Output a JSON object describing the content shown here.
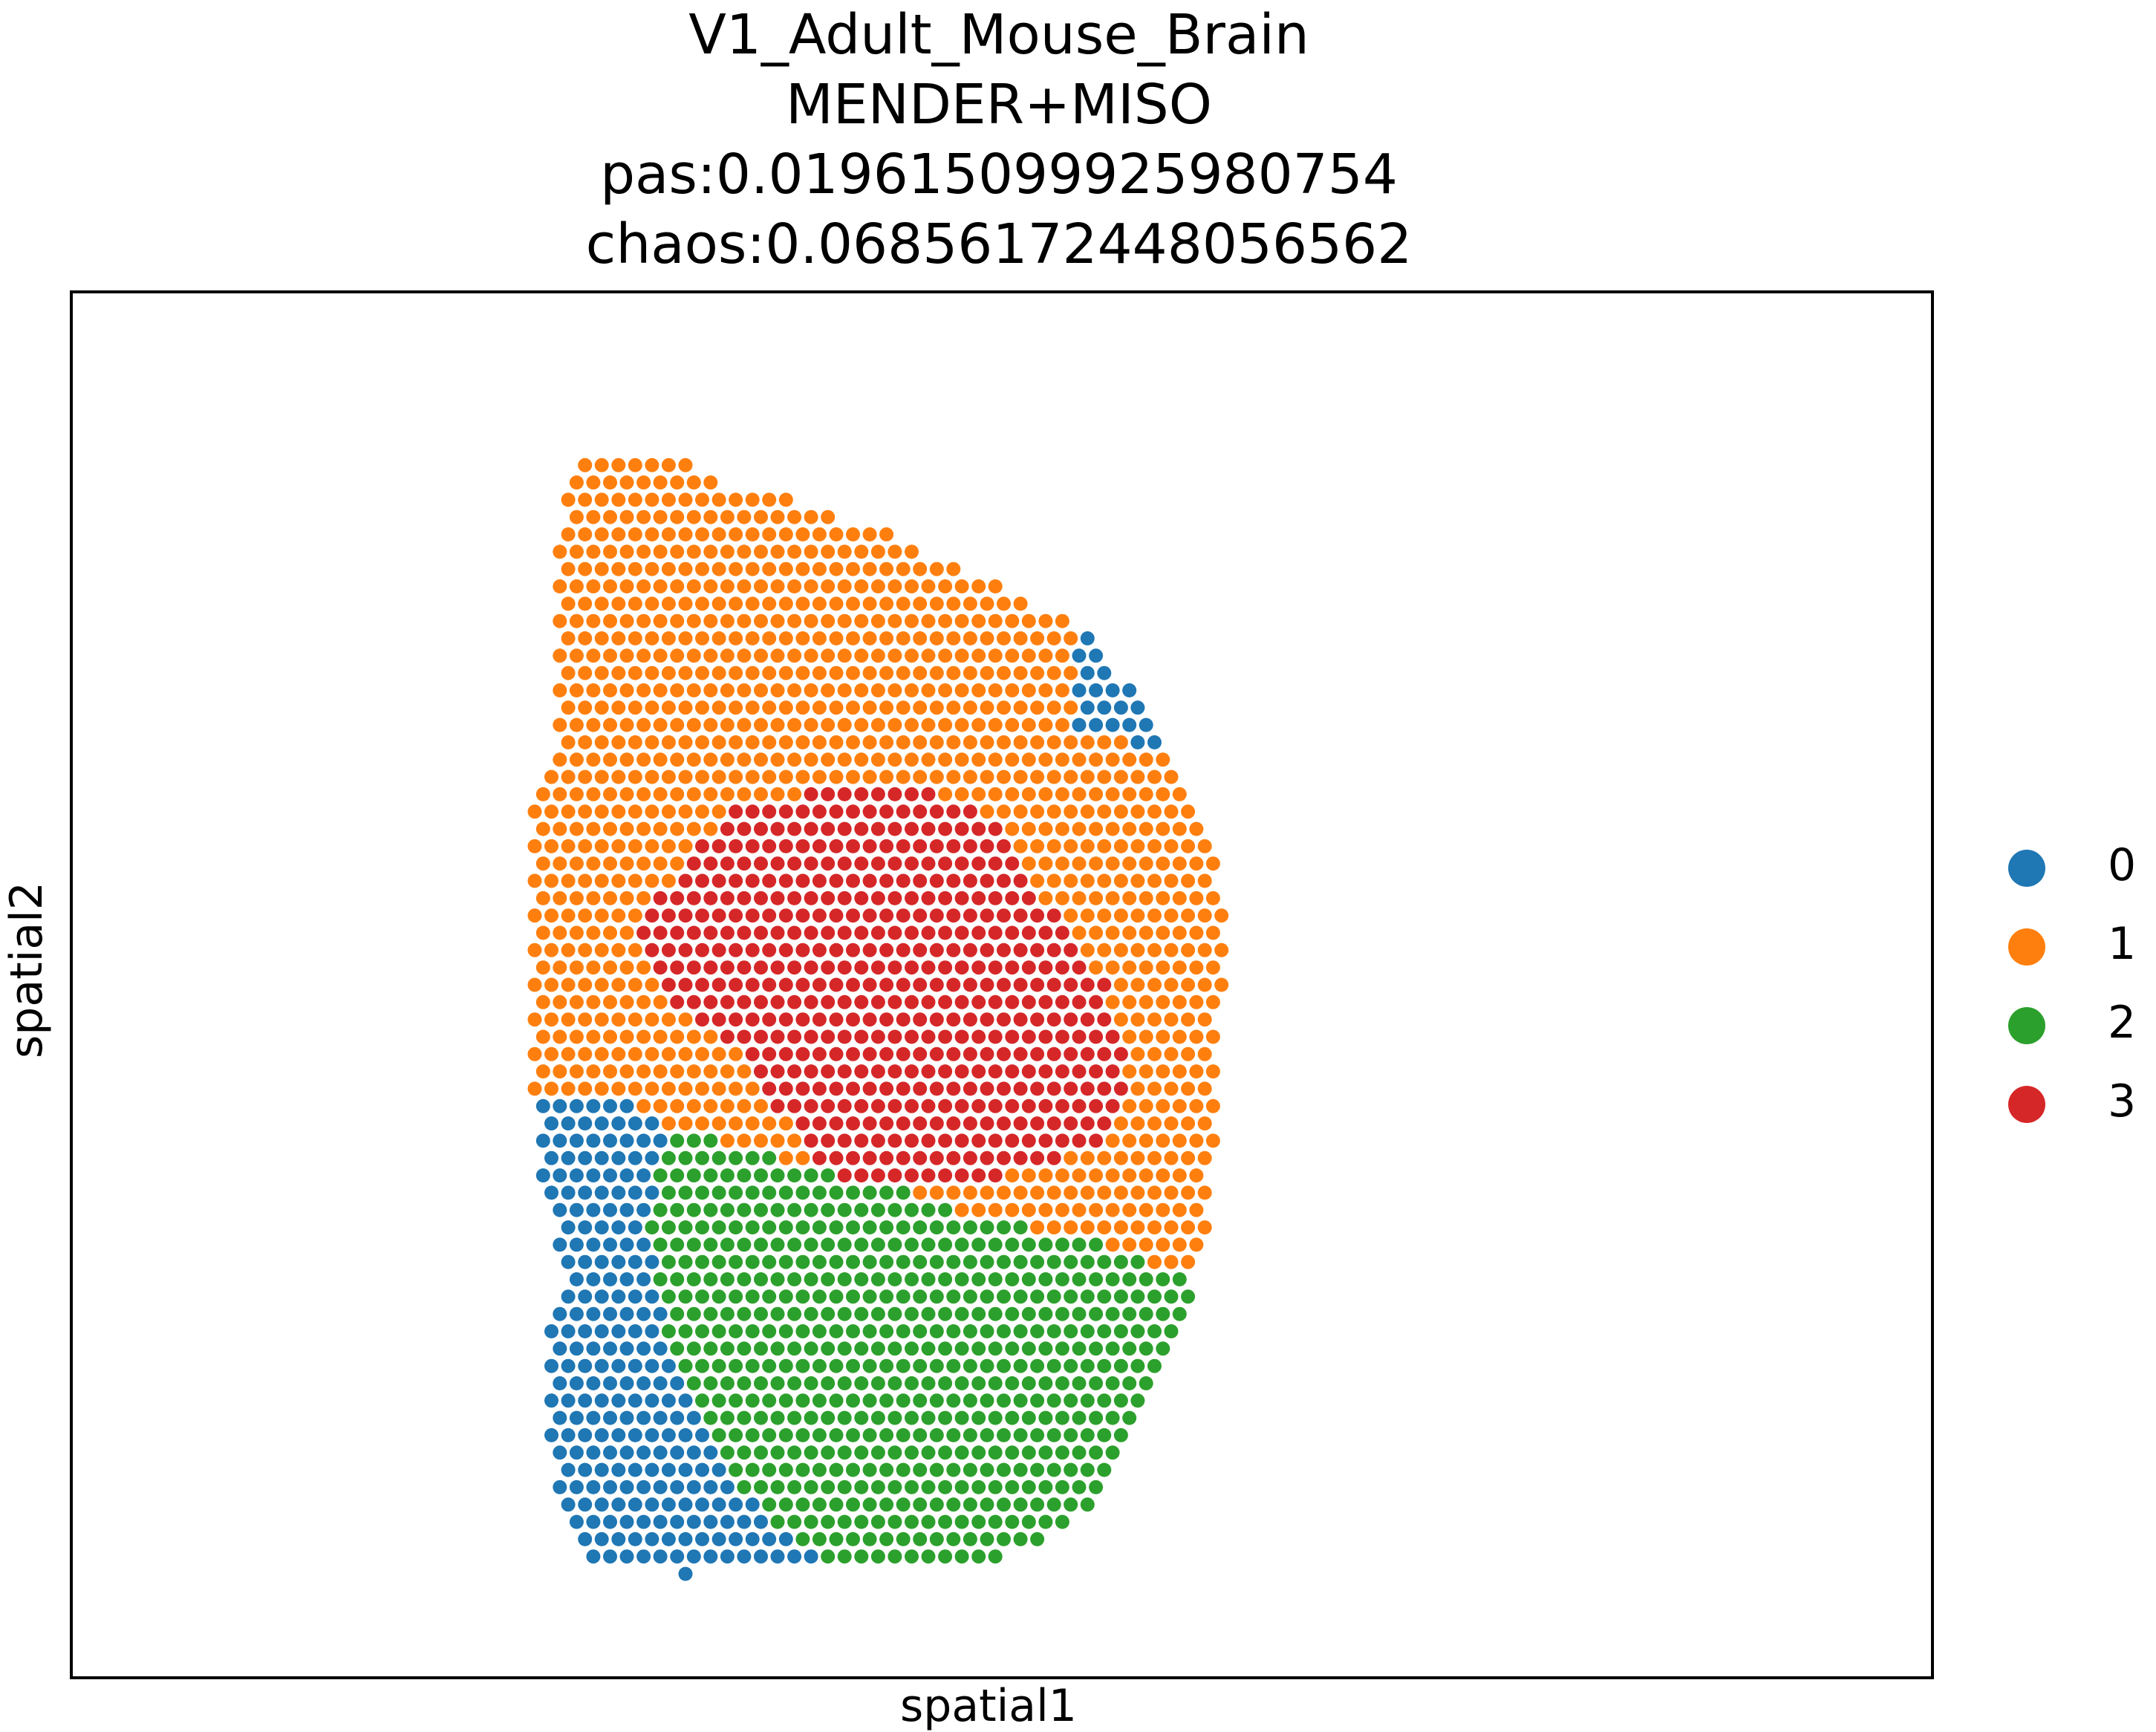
{
  "chart_data": {
    "type": "scatter",
    "title_lines": [
      "V1_Adult_Mouse_Brain",
      "MENDER+MISO",
      "pas:0.019615099925980754",
      "chaos:0.06856172448056562"
    ],
    "xlabel": "spatial1",
    "ylabel": "spatial2",
    "axis_ticks": "none",
    "grid": false,
    "legend_position": "right",
    "legend": [
      {
        "label": "0",
        "color": "#1f77b4"
      },
      {
        "label": "1",
        "color": "#ff7f0e"
      },
      {
        "label": "2",
        "color": "#2ca02c"
      },
      {
        "label": "3",
        "color": "#d62728"
      }
    ],
    "region_columns": [
      [
        43.7,
        12.7,
        13.9
      ],
      [
        23.6,
        12.7,
        29.8
      ],
      [
        9.9,
        12.7,
        13.9
      ],
      [
        5.0,
        28.6,
        29.8
      ],
      [
        7.0,
        29.8,
        49.6
      ],
      [
        9.3,
        49.6,
        60.0
      ],
      [
        12.2,
        60.0,
        61.2
      ],
      [
        16.5,
        61.2,
        63.6
      ],
      [
        16.1,
        63.6,
        70.7
      ],
      [
        15.4,
        70.7,
        84.1
      ],
      [
        12.2,
        84.1,
        88.7
      ],
      [
        11.3,
        88.7,
        96.1
      ],
      [
        7.0,
        96.1,
        98.5
      ]
    ],
    "cluster_regions": [
      {
        "cluster": "2",
        "vertices": [
          [
            32.0,
            60.8
          ],
          [
            34.5,
            61.2
          ],
          [
            37.5,
            62.2
          ],
          [
            40.5,
            63.5
          ],
          [
            43.0,
            63.8
          ],
          [
            44.5,
            64.5
          ],
          [
            47.8,
            66.8
          ],
          [
            50.5,
            67.2
          ],
          [
            52.0,
            67.7
          ],
          [
            55.5,
            68.7
          ],
          [
            58.2,
            70.2
          ],
          [
            61.5,
            71.5
          ],
          [
            64.5,
            72.0
          ],
          [
            64.8,
            73.5
          ],
          [
            68.0,
            77.5
          ],
          [
            69.5,
            81.0
          ],
          [
            72.0,
            84.8
          ],
          [
            70.5,
            88.5
          ],
          [
            67.5,
            92.0
          ],
          [
            64.0,
            94.5
          ],
          [
            59.0,
            96.0
          ],
          [
            53.0,
            95.5
          ],
          [
            47.0,
            94.2
          ],
          [
            42.0,
            92.8
          ],
          [
            38.0,
            89.0
          ],
          [
            35.0,
            85.0
          ],
          [
            33.0,
            80.0
          ],
          [
            31.5,
            73.0
          ],
          [
            31.0,
            66.5
          ]
        ]
      },
      {
        "cluster": "1",
        "vertices": [
          [
            32.0,
            60.8
          ],
          [
            30.0,
            58.5
          ],
          [
            28.5,
            54.5
          ],
          [
            29.0,
            51.0
          ],
          [
            30.5,
            46.5
          ],
          [
            31.5,
            44.0
          ],
          [
            33.5,
            40.5
          ],
          [
            35.5,
            36.8
          ],
          [
            39.0,
            36.5
          ],
          [
            42.0,
            35.0
          ],
          [
            46.0,
            34.0
          ],
          [
            49.0,
            33.0
          ],
          [
            53.0,
            32.5
          ],
          [
            57.0,
            32.5
          ],
          [
            60.0,
            33.5
          ],
          [
            62.5,
            35.0
          ],
          [
            65.0,
            36.5
          ],
          [
            66.0,
            39.0
          ],
          [
            66.5,
            42.0
          ],
          [
            67.5,
            45.0
          ],
          [
            69.2,
            48.0
          ],
          [
            69.5,
            51.0
          ],
          [
            68.2,
            54.0
          ],
          [
            67.2,
            57.0
          ],
          [
            65.5,
            60.0
          ],
          [
            63.0,
            62.0
          ],
          [
            61.5,
            64.5
          ],
          [
            61.0,
            68.0
          ],
          [
            61.5,
            71.5
          ],
          [
            58.2,
            70.2
          ],
          [
            55.5,
            68.7
          ],
          [
            52.0,
            67.7
          ],
          [
            50.5,
            67.2
          ],
          [
            47.8,
            66.8
          ],
          [
            44.5,
            64.5
          ],
          [
            43.0,
            63.8
          ],
          [
            40.5,
            63.5
          ],
          [
            37.5,
            62.2
          ],
          [
            34.5,
            61.2
          ]
        ]
      },
      {
        "cluster": "3",
        "vertices": [
          [
            31.5,
            44.0
          ],
          [
            33.5,
            40.5
          ],
          [
            35.5,
            36.8
          ],
          [
            39.0,
            36.5
          ],
          [
            42.0,
            35.0
          ],
          [
            44.5,
            35.5
          ],
          [
            46.5,
            36.2
          ],
          [
            48.5,
            37.5
          ],
          [
            50.0,
            39.0
          ],
          [
            50.5,
            41.0
          ],
          [
            51.5,
            43.0
          ],
          [
            53.0,
            45.0
          ],
          [
            54.5,
            47.8
          ],
          [
            55.5,
            50.0
          ],
          [
            56.0,
            52.5
          ],
          [
            56.8,
            55.0
          ],
          [
            56.5,
            58.5
          ],
          [
            55.5,
            61.0
          ],
          [
            53.0,
            62.5
          ],
          [
            50.5,
            63.5
          ],
          [
            48.0,
            64.5
          ],
          [
            45.5,
            65.0
          ],
          [
            43.5,
            64.8
          ],
          [
            41.5,
            64.5
          ],
          [
            40.0,
            62.5
          ],
          [
            39.5,
            60.5
          ],
          [
            38.0,
            59.0
          ],
          [
            37.0,
            57.0
          ],
          [
            35.8,
            54.8
          ],
          [
            34.5,
            53.0
          ],
          [
            32.5,
            51.5
          ],
          [
            31.5,
            50.0
          ],
          [
            30.5,
            48.0
          ],
          [
            30.0,
            46.5
          ]
        ]
      }
    ]
  }
}
